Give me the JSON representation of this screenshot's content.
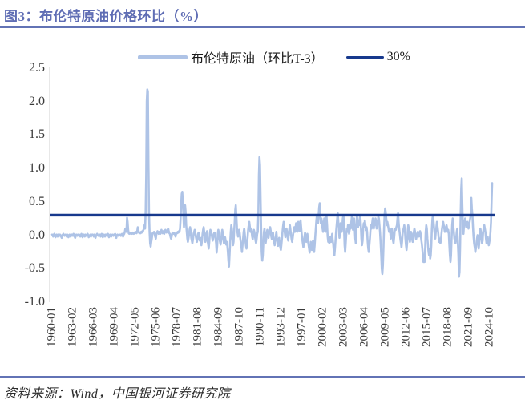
{
  "header": {
    "title": "图3：布伦特原油价格环比（%）"
  },
  "footer": {
    "source": "资料来源：Wind，中国银河证券研究院"
  },
  "colors": {
    "accent": "#5f6db4",
    "rule": "#6273b5",
    "series": "#aec3e6",
    "threshold": "#17398d",
    "axis_line": "#d9d9d9",
    "tick_text": "#3a3a3a"
  },
  "chart_data": {
    "type": "line",
    "title": "布伦特原油价格环比（%）",
    "legend": [
      {
        "name": "布伦特原油（环比T-3）",
        "color": "#aec3e6"
      },
      {
        "name": "30%",
        "color": "#17398d"
      }
    ],
    "legend_position": "top",
    "grid": false,
    "ylim": [
      -1.0,
      2.5
    ],
    "y_tick_labels": [
      "2.5",
      "2.0",
      "1.5",
      "1.0",
      "0.5",
      "0.0",
      "-0.5",
      "-1.0"
    ],
    "x_tick_labels": [
      "1960-01",
      "1963-02",
      "1966-03",
      "1969-04",
      "1972-05",
      "1975-06",
      "1978-07",
      "1981-08",
      "1984-09",
      "1987-10",
      "1990-11",
      "1993-12",
      "1997-01",
      "2000-02",
      "2003-03",
      "2006-04",
      "2009-05",
      "2012-06",
      "2015-07",
      "2018-08",
      "2021-09",
      "2024-10"
    ],
    "x_start": "1960-01",
    "x_frequency": "monthly",
    "threshold": {
      "name": "30%",
      "value": 0.3
    },
    "values": [
      0.01,
      0.0,
      -0.02,
      0.01,
      0.02,
      0.0,
      -0.03,
      -0.01,
      0.01,
      0.0,
      -0.02,
      0.01,
      0.0,
      -0.01,
      0.01,
      0.0,
      -0.02,
      -0.04,
      0.0,
      0.01,
      0.02,
      0.0,
      -0.01,
      0.0,
      0.01,
      0.0,
      -0.02,
      0.01,
      0.0,
      -0.03,
      -0.01,
      0.01,
      0.0,
      -0.02,
      0.0,
      0.01,
      0.0,
      -0.01,
      0.02,
      0.0,
      -0.02,
      -0.04,
      -0.01,
      0.01,
      0.0,
      -0.01,
      0.01,
      0.0,
      0.01,
      0.0,
      -0.02,
      0.0,
      0.02,
      -0.01,
      -0.03,
      0.0,
      0.01,
      0.0,
      -0.02,
      0.01,
      0.0,
      -0.01,
      0.01,
      0.02,
      0.0,
      -0.03,
      -0.01,
      0.0,
      0.01,
      -0.02,
      0.0,
      0.01,
      0.01,
      0.0,
      -0.02,
      0.01,
      0.0,
      -0.04,
      -0.01,
      0.01,
      0.02,
      0.0,
      -0.01,
      0.0,
      0.0,
      0.01,
      -0.02,
      0.0,
      0.02,
      -0.01,
      -0.03,
      0.0,
      0.01,
      0.0,
      -0.02,
      0.01,
      0.01,
      0.0,
      -0.01,
      0.02,
      0.0,
      -0.03,
      -0.01,
      0.01,
      0.0,
      -0.02,
      0.0,
      0.01,
      0.0,
      -0.01,
      0.01,
      0.0,
      0.02,
      -0.02,
      -0.04,
      0.0,
      0.01,
      0.0,
      -0.01,
      0.01,
      0.0,
      0.01,
      -0.01,
      0.0,
      0.02,
      0.0,
      -0.02,
      0.01,
      0.02,
      0.05,
      0.1,
      0.08,
      0.05,
      0.26,
      0.2,
      0.08,
      0.03,
      0.02,
      0.04,
      0.03,
      0.02,
      0.03,
      0.02,
      0.04,
      0.03,
      0.02,
      0.04,
      0.03,
      0.05,
      0.04,
      0.03,
      0.06,
      0.12,
      0.08,
      0.04,
      0.03,
      0.04,
      0.03,
      0.05,
      0.04,
      0.06,
      0.05,
      0.08,
      0.1,
      0.15,
      0.1,
      0.35,
      0.9,
      2.0,
      2.18,
      2.15,
      1.1,
      0.35,
      0.05,
      -0.12,
      -0.17,
      -0.1,
      -0.05,
      0.02,
      0.04,
      0.03,
      0.05,
      0.02,
      -0.02,
      -0.05,
      0.02,
      0.04,
      0.06,
      0.03,
      0.02,
      0.05,
      0.03,
      0.02,
      0.04,
      0.08,
      0.05,
      0.03,
      0.06,
      0.04,
      0.02,
      0.05,
      0.08,
      0.06,
      0.04,
      0.05,
      0.08,
      0.1,
      0.06,
      0.03,
      0.02,
      -0.02,
      -0.05,
      -0.03,
      0.02,
      0.04,
      0.03,
      0.02,
      0.03,
      0.01,
      -0.02,
      0.02,
      0.04,
      0.03,
      0.05,
      0.04,
      0.06,
      0.05,
      0.1,
      0.25,
      0.45,
      0.62,
      0.65,
      0.5,
      0.3,
      0.12,
      0.3,
      0.45,
      0.35,
      0.15,
      0.05,
      -0.05,
      -0.1,
      -0.05,
      0.0,
      0.08,
      0.12,
      0.06,
      -0.04,
      -0.08,
      -0.12,
      -0.06,
      0.02,
      0.05,
      0.08,
      0.04,
      -0.02,
      -0.06,
      -0.1,
      -0.05,
      0.02,
      0.04,
      -0.03,
      -0.08,
      -0.04,
      -0.1,
      -0.15,
      -0.08,
      0.02,
      0.08,
      0.12,
      0.05,
      -0.05,
      -0.1,
      -0.06,
      0.03,
      0.06,
      -0.08,
      -0.14,
      -0.2,
      -0.1,
      0.02,
      0.08,
      0.05,
      0.02,
      -0.04,
      -0.08,
      -0.03,
      0.02,
      0.04,
      0.02,
      -0.05,
      -0.12,
      -0.26,
      -0.15,
      0.02,
      0.08,
      0.03,
      -0.05,
      -0.1,
      -0.14,
      -0.08,
      0.02,
      0.08,
      0.03,
      -0.06,
      -0.12,
      -0.08,
      -0.03,
      -0.08,
      -0.14,
      -0.1,
      -0.15,
      -0.25,
      -0.38,
      -0.47,
      -0.3,
      -0.12,
      0.05,
      0.15,
      0.1,
      -0.05,
      -0.15,
      -0.1,
      0.05,
      0.2,
      0.38,
      0.45,
      0.28,
      0.12,
      0.04,
      -0.02,
      0.05,
      0.08,
      0.03,
      -0.05,
      -0.12,
      -0.18,
      -0.25,
      -0.15,
      -0.05,
      0.05,
      0.1,
      0.02,
      -0.08,
      -0.15,
      -0.2,
      -0.12,
      -0.04,
      0.08,
      0.15,
      0.2,
      0.12,
      0.05,
      0.1,
      0.06,
      -0.02,
      -0.06,
      0.02,
      0.08,
      0.05,
      -0.02,
      -0.08,
      -0.12,
      -0.06,
      0.02,
      0.05,
      0.3,
      0.9,
      1.17,
      1.05,
      0.55,
      0.1,
      -0.25,
      -0.38,
      -0.3,
      -0.1,
      0.05,
      0.1,
      -0.05,
      -0.12,
      -0.06,
      0.04,
      0.08,
      0.02,
      -0.04,
      0.03,
      0.08,
      0.12,
      0.06,
      -0.02,
      -0.06,
      -0.03,
      0.04,
      -0.05,
      -0.1,
      -0.15,
      -0.08,
      -0.02,
      0.05,
      -0.04,
      -0.1,
      -0.16,
      -0.1,
      -0.04,
      -0.12,
      -0.18,
      -0.22,
      -0.14,
      -0.05,
      0.06,
      0.14,
      0.2,
      0.12,
      0.04,
      -0.03,
      0.05,
      0.1,
      0.04,
      -0.04,
      -0.08,
      0.02,
      0.1,
      0.15,
      0.08,
      0.0,
      -0.06,
      -0.1,
      -0.04,
      0.03,
      0.08,
      0.12,
      0.05,
      0.1,
      0.18,
      0.12,
      0.05,
      0.12,
      0.2,
      0.14,
      0.06,
      0.15,
      0.22,
      0.12,
      0.02,
      -0.06,
      -0.12,
      -0.18,
      -0.1,
      -0.02,
      0.04,
      -0.05,
      -0.1,
      -0.06,
      0.02,
      -0.08,
      -0.14,
      -0.2,
      -0.26,
      -0.18,
      -0.1,
      -0.15,
      -0.22,
      -0.16,
      -0.08,
      -0.18,
      -0.25,
      -0.15,
      -0.02,
      0.1,
      0.22,
      0.3,
      0.25,
      0.18,
      0.3,
      0.42,
      0.48,
      0.3,
      0.18,
      0.25,
      0.2,
      0.1,
      0.05,
      0.15,
      0.25,
      0.15,
      0.05,
      0.18,
      0.28,
      0.15,
      -0.02,
      -0.1,
      -0.05,
      -0.12,
      -0.08,
      -0.02,
      -0.1,
      -0.06,
      0.02,
      -0.08,
      -0.14,
      -0.25,
      -0.3,
      -0.2,
      -0.08,
      0.05,
      0.15,
      0.25,
      0.33,
      0.2,
      0.08,
      -0.04,
      0.06,
      0.18,
      0.12,
      0.05,
      0.12,
      0.25,
      0.3,
      0.1,
      -0.15,
      -0.25,
      -0.12,
      0.02,
      0.1,
      0.05,
      0.15,
      0.1,
      0.02,
      0.08,
      0.15,
      0.1,
      0.2,
      0.28,
      0.18,
      0.08,
      0.18,
      0.25,
      0.12,
      -0.05,
      -0.12,
      0.05,
      0.3,
      0.22,
      0.12,
      0.2,
      0.15,
      0.25,
      0.3,
      0.15,
      -0.05,
      -0.15,
      -0.08,
      0.1,
      0.18,
      0.12,
      0.22,
      0.15,
      0.08,
      0.12,
      0.05,
      -0.1,
      -0.2,
      -0.25,
      -0.15,
      -0.05,
      0.08,
      0.15,
      0.1,
      0.18,
      0.25,
      0.15,
      0.1,
      0.2,
      0.15,
      0.25,
      0.2,
      0.1,
      0.15,
      0.2,
      0.28,
      0.25,
      0.15,
      0.05,
      -0.1,
      -0.3,
      -0.5,
      -0.58,
      -0.45,
      -0.2,
      0.1,
      0.3,
      0.4,
      0.35,
      0.25,
      0.15,
      0.2,
      0.15,
      0.1,
      0.05,
      0.1,
      0.05,
      -0.05,
      0.02,
      0.1,
      0.05,
      -0.08,
      -0.12,
      -0.04,
      0.06,
      0.1,
      0.08,
      0.12,
      0.15,
      0.25,
      0.33,
      0.2,
      0.1,
      0.02,
      -0.06,
      -0.12,
      -0.18,
      -0.1,
      0.02,
      0.08,
      0.1,
      0.15,
      0.08,
      -0.05,
      -0.15,
      -0.22,
      -0.12,
      0.05,
      0.15,
      0.1,
      -0.05,
      -0.1,
      -0.02,
      0.05,
      0.02,
      -0.06,
      -0.1,
      -0.04,
      0.05,
      0.1,
      0.06,
      -0.02,
      -0.06,
      -0.02,
      0.02,
      0.05,
      0.02,
      -0.02,
      0.04,
      0.06,
      0.02,
      -0.06,
      -0.12,
      -0.2,
      -0.3,
      -0.4,
      -0.35,
      -0.4,
      -0.2,
      0.05,
      0.15,
      0.1,
      -0.05,
      -0.15,
      -0.25,
      -0.3,
      -0.2,
      -0.35,
      -0.3,
      -0.15,
      0.1,
      0.25,
      0.3,
      0.2,
      0.1,
      0.02,
      -0.05,
      0.05,
      0.12,
      0.2,
      0.12,
      0.05,
      -0.04,
      -0.1,
      -0.05,
      -0.12,
      -0.08,
      0.02,
      0.1,
      0.15,
      0.2,
      0.15,
      0.1,
      0.05,
      0.08,
      0.12,
      0.15,
      0.1,
      0.05,
      0.08,
      0.02,
      -0.15,
      -0.3,
      -0.4,
      -0.3,
      -0.05,
      0.15,
      0.25,
      0.15,
      0.05,
      -0.05,
      -0.08,
      -0.12,
      -0.05,
      0.05,
      0.1,
      -0.1,
      -0.3,
      -0.62,
      -0.55,
      -0.2,
      0.3,
      0.7,
      0.85,
      0.45,
      0.12,
      0.02,
      0.15,
      0.2,
      0.25,
      0.18,
      0.12,
      0.15,
      0.2,
      0.15,
      0.1,
      0.15,
      0.2,
      0.25,
      0.3,
      0.56,
      0.4,
      0.3,
      0.12,
      -0.02,
      -0.12,
      -0.18,
      -0.25,
      -0.2,
      -0.12,
      -0.05,
      0.0,
      -0.1,
      -0.2,
      -0.12,
      0.02,
      0.1,
      0.05,
      -0.05,
      -0.12,
      -0.08,
      0.05,
      0.12,
      0.15,
      0.1,
      0.05,
      -0.05,
      -0.12,
      -0.08,
      -0.02,
      -0.1,
      -0.15,
      -0.1,
      -0.05,
      0.05,
      0.2,
      0.5,
      0.78
    ]
  }
}
